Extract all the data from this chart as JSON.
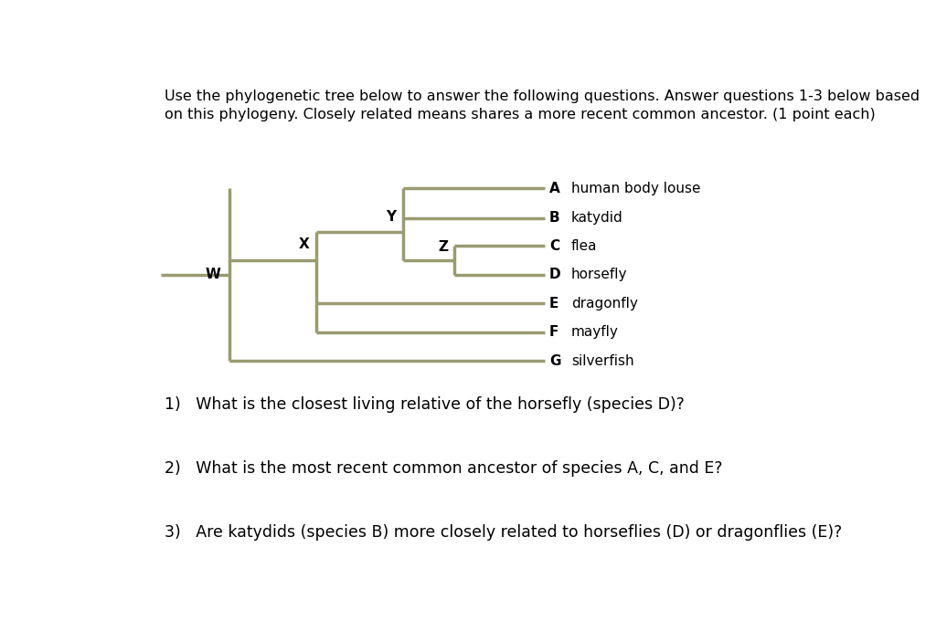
{
  "title_text": "Use the phylogenetic tree below to answer the following questions. Answer questions 1-3 below based\non this phylogeny. Closely related means shares a more recent common ancestor. (1 point each)",
  "question1": "1)   What is the closest living relative of the horsefly (species D)?",
  "question2": "2)   What is the most recent common ancestor of species A, C, and E?",
  "question3": "3)   Are katydids (species B) more closely related to horseflies (D) or dragonflies (E)?",
  "tree_color": "#9b9b72",
  "tree_lw": 2.5,
  "bg_color": "#ffffff",
  "text_color": "#000000",
  "species": [
    "A",
    "B",
    "C",
    "D",
    "E",
    "F",
    "G"
  ],
  "species_labels": [
    "human body louse",
    "katydid",
    "flea",
    "horsefly",
    "dragonfly",
    "mayfly",
    "silverfish"
  ],
  "font_size_title": 11.5,
  "font_size_questions": 12.5
}
